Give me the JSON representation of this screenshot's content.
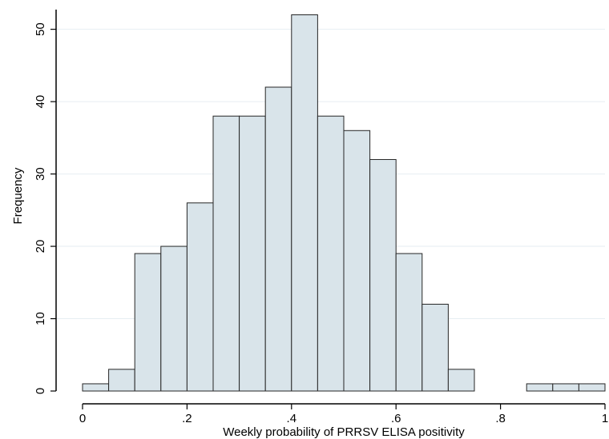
{
  "chart_data": {
    "type": "bar",
    "subtype": "histogram",
    "xlabel": "Weekly probability of PRRSV ELISA positivity",
    "ylabel": "Frequency",
    "bin_width": 0.05,
    "bins": [
      {
        "start": 0.0,
        "end": 0.05,
        "value": 1
      },
      {
        "start": 0.05,
        "end": 0.1,
        "value": 3
      },
      {
        "start": 0.1,
        "end": 0.15,
        "value": 19
      },
      {
        "start": 0.15,
        "end": 0.2,
        "value": 20
      },
      {
        "start": 0.2,
        "end": 0.25,
        "value": 26
      },
      {
        "start": 0.25,
        "end": 0.3,
        "value": 38
      },
      {
        "start": 0.3,
        "end": 0.35,
        "value": 38
      },
      {
        "start": 0.35,
        "end": 0.4,
        "value": 42
      },
      {
        "start": 0.4,
        "end": 0.45,
        "value": 52
      },
      {
        "start": 0.45,
        "end": 0.5,
        "value": 38
      },
      {
        "start": 0.5,
        "end": 0.55,
        "value": 36
      },
      {
        "start": 0.55,
        "end": 0.6,
        "value": 32
      },
      {
        "start": 0.6,
        "end": 0.65,
        "value": 19
      },
      {
        "start": 0.65,
        "end": 0.7,
        "value": 12
      },
      {
        "start": 0.7,
        "end": 0.75,
        "value": 3
      },
      {
        "start": 0.85,
        "end": 0.9,
        "value": 1
      },
      {
        "start": 0.9,
        "end": 0.95,
        "value": 1
      },
      {
        "start": 0.95,
        "end": 1.0,
        "value": 1
      }
    ],
    "xlim": [
      0,
      1
    ],
    "ylim": [
      0,
      52.5
    ],
    "xticks": [
      {
        "value": 0,
        "label": "0"
      },
      {
        "value": 0.2,
        "label": ".2"
      },
      {
        "value": 0.4,
        "label": ".4"
      },
      {
        "value": 0.6,
        "label": ".6"
      },
      {
        "value": 0.8,
        "label": ".8"
      },
      {
        "value": 1,
        "label": "1"
      }
    ],
    "yticks": [
      {
        "value": 0,
        "label": "0"
      },
      {
        "value": 10,
        "label": "10"
      },
      {
        "value": 20,
        "label": "20"
      },
      {
        "value": 30,
        "label": "30"
      },
      {
        "value": 40,
        "label": "40"
      },
      {
        "value": 50,
        "label": "50"
      }
    ],
    "grid": "horizontal",
    "colors": {
      "bar_fill": "#d9e4ea",
      "bar_stroke": "#262626",
      "grid": "#e6eef2",
      "axis": "#000000"
    }
  }
}
